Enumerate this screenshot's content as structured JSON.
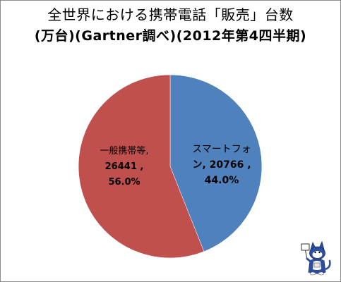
{
  "header": {
    "title_line1": "全世界における携帯電話「販売」台数",
    "title_line2": "(万台)(Gartner調べ)(2012年第4四半期)"
  },
  "chart_data": {
    "type": "pie",
    "title": "全世界における携帯電話「販売」台数 (万台)(Gartner調べ)(2012年第4四半期)",
    "start_angle_deg": 0,
    "direction": "clockwise",
    "legend": "none",
    "slices": [
      {
        "name": "スマートフォン",
        "value": 20766,
        "percent": "44.0%",
        "label_lines": [
          "スマートフォ",
          "ン, 20766 ,",
          "44.0%"
        ],
        "color": "#4f81bd"
      },
      {
        "name": "一般携帯等",
        "value": 26441,
        "percent": "56.0%",
        "label_lines": [
          "一般携帯等,",
          "26441 ,",
          "56.0%"
        ],
        "color": "#c0504d"
      }
    ]
  },
  "mascot": {
    "icon": "cat-mascot-icon"
  }
}
